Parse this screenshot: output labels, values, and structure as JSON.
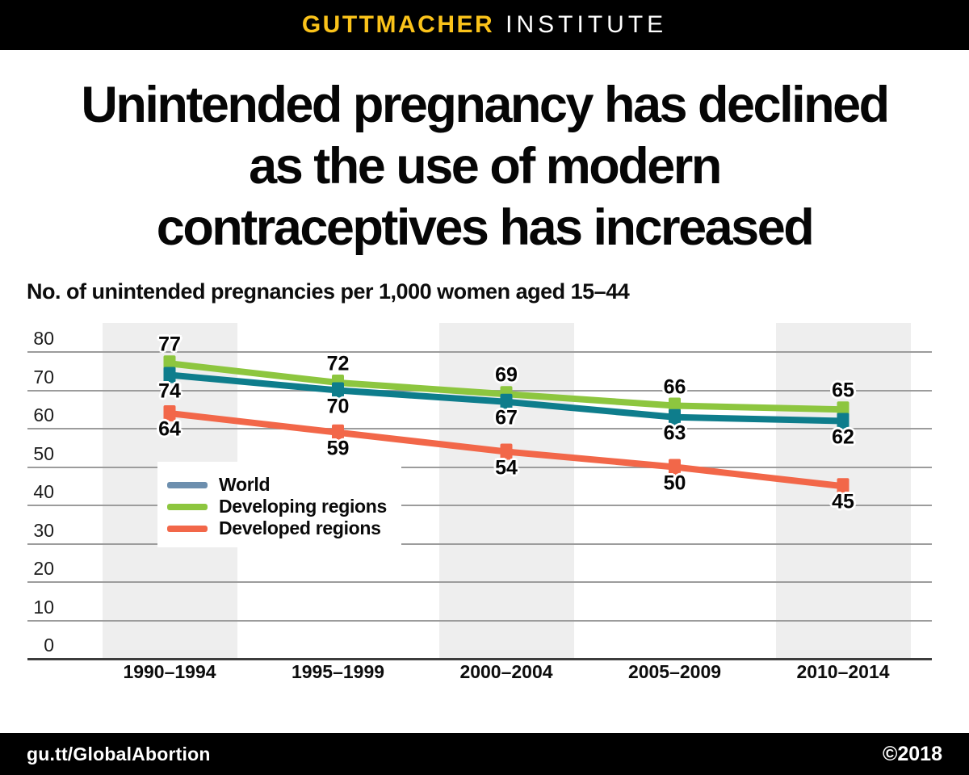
{
  "header": {
    "brand_primary": "GUTTMACHER",
    "brand_secondary": "INSTITUTE"
  },
  "title_lines": [
    "Unintended pregnancy has declined",
    "as the use of modern",
    "contraceptives has increased"
  ],
  "subtitle": "No. of unintended pregnancies per 1,000 women aged 15–44",
  "footer": {
    "link": "gu.tt/GlobalAbortion",
    "copyright": "©2018"
  },
  "colors": {
    "brand_yellow": "#FBC31A",
    "bar_black": "#000000",
    "world_line": "#0E7D8C",
    "world_legend": "#6D8FAE",
    "developing_line": "#8DC63F",
    "developed_line": "#F26749",
    "shaded_band": "#EEEEEE",
    "gridline": "#9C9C9C",
    "axis_line": "#3C3C3C"
  },
  "chart_data": {
    "type": "line",
    "title": "Unintended pregnancy has declined as the use of modern contraceptives has increased",
    "ylabel": "No. of unintended pregnancies per 1,000 women aged 15–44",
    "xlabel": "",
    "categories": [
      "1990–1994",
      "1995–1999",
      "2000–2004",
      "2005–2009",
      "2010–2014"
    ],
    "series": [
      {
        "name": "World",
        "values": [
          74,
          70,
          67,
          63,
          62
        ],
        "color": "#0E7D8C",
        "legend_color": "#6D8FAE",
        "label_position": "below"
      },
      {
        "name": "Developing regions",
        "values": [
          77,
          72,
          69,
          66,
          65
        ],
        "color": "#8DC63F",
        "legend_color": "#8DC63F",
        "label_position": "above"
      },
      {
        "name": "Developed regions",
        "values": [
          64,
          59,
          54,
          50,
          45
        ],
        "color": "#F26749",
        "legend_color": "#F26749",
        "label_position": "below"
      }
    ],
    "yticks": [
      80,
      70,
      60,
      50,
      40,
      30,
      20,
      10,
      0
    ],
    "ylim": [
      0,
      80
    ],
    "grid": true,
    "legend_position": "inside-left",
    "shaded_categories": [
      0,
      2,
      4
    ],
    "data_labels": true
  }
}
